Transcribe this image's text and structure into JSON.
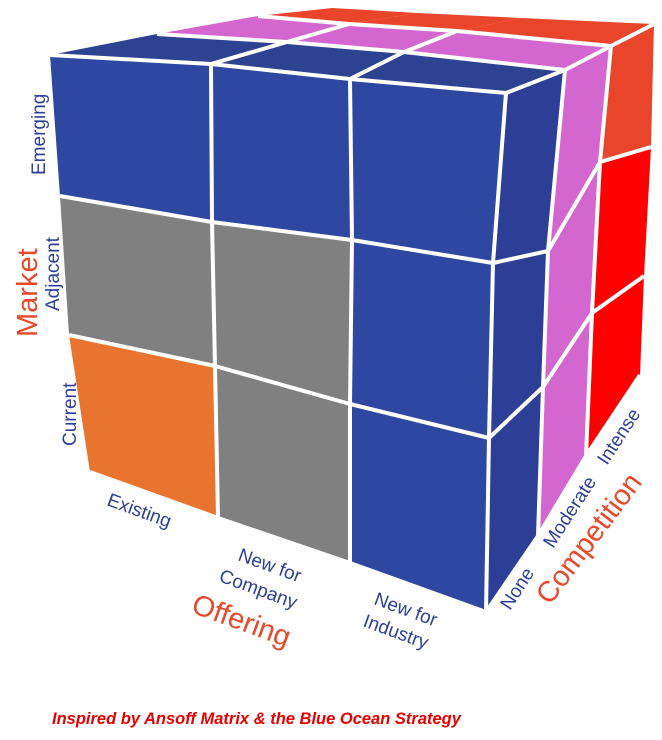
{
  "market": {
    "title": "Market",
    "levels": [
      "Current",
      "Adjacent",
      "Emerging"
    ]
  },
  "offering": {
    "title": "Offering",
    "levels": [
      {
        "line1": "Existing",
        "line2": ""
      },
      {
        "line1": "New for",
        "line2": "Company"
      },
      {
        "line1": "New for",
        "line2": "Industry"
      }
    ]
  },
  "competition": {
    "title": "Competition",
    "levels": [
      "None",
      "Moderate",
      "Intense"
    ]
  },
  "credit": "Inspired by Ansoff Matrix & the Blue Ocean Strategy",
  "colors": {
    "front_blue": "#2e47a0",
    "grey": "#808080",
    "orange": "#e8742f",
    "side_blue": "#2c3e96",
    "pink": "#d466cf",
    "red": "#ff0000",
    "top_back": "#e8452a",
    "top_front": "#2e4292",
    "axis_text": "#2e3f97",
    "axis_title": "#e8492a",
    "credit_text": "#e80000"
  }
}
